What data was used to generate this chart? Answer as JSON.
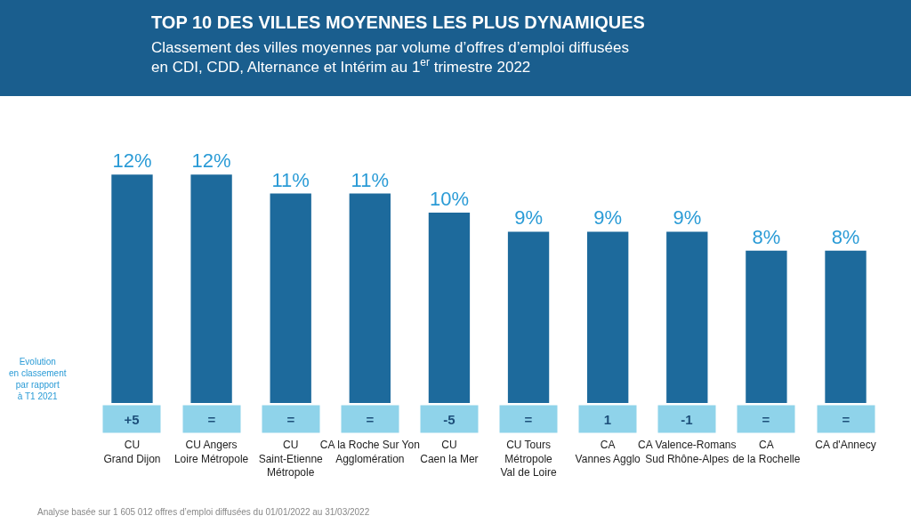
{
  "chart_data": {
    "type": "bar",
    "title": "TOP 10 DES VILLES MOYENNES LES PLUS DYNAMIQUES",
    "subtitle": "Classement des villes moyennes par volume d’offres d’emploi diffusées\nen CDI, CDD, Alternance et Intérim au 1$^{er}$ trimestre 2022",
    "categories": [
      "CU\nGrand Dijon",
      "CU Angers\nLoire Métropole",
      "CU\nSaint-Etienne\nMétropole",
      "CA la Roche Sur Yon\nAgglomération",
      "CU\nCaen la Mer",
      "CU Tours\nMétropole\nVal de Loire",
      "CA\nVannes Agglo",
      "CA Valence-Romans\nSud Rhône-Alpes",
      "CA\nde la Rochelle",
      "CA d'Annecy"
    ],
    "values": [
      12,
      12,
      11,
      11,
      10,
      9,
      9,
      9,
      8,
      8
    ],
    "value_labels": [
      "12%",
      "12%",
      "11%",
      "11%",
      "10%",
      "9%",
      "9%",
      "9%",
      "8%",
      "8%"
    ],
    "color": "#1d6a9c",
    "annotations": [
      "Evolution\nen classement\npar rapport\nà T1 2021",
      "+5",
      "=",
      "=",
      "=",
      "-5",
      "=",
      "1",
      "-1",
      "=",
      "=",
      "Analyse basée sur 1 605 012 offres d’emploi diffusées du 01/01/2022 au 31/03/2022"
    ],
    "legend": false
  }
}
